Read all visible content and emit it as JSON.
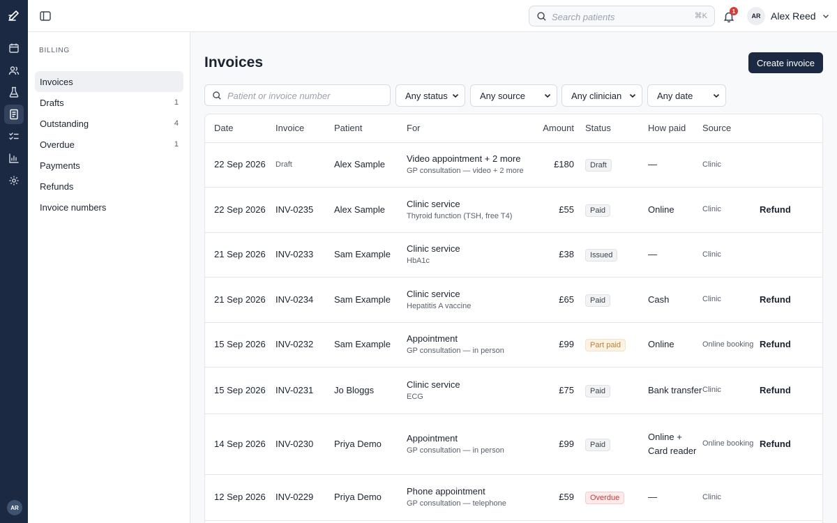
{
  "topbar": {
    "search_placeholder": "Search patients",
    "search_shortcut": "⌘K",
    "notification_count": "1",
    "user_initials": "AR",
    "user_name": "Alex Reed"
  },
  "rail": {
    "icons": [
      "compose-logo-icon",
      "calendar-icon",
      "patients-icon",
      "lab-flask-icon",
      "billing-icon",
      "tasks-checklist-icon",
      "reports-chart-icon",
      "settings-gear-icon"
    ],
    "active": "billing-icon",
    "avatar_initials": "AR"
  },
  "sidebar": {
    "section_title": "BILLING",
    "items": [
      {
        "label": "Invoices",
        "count": ""
      },
      {
        "label": "Drafts",
        "count": "1"
      },
      {
        "label": "Outstanding",
        "count": "4"
      },
      {
        "label": "Overdue",
        "count": "1"
      },
      {
        "label": "Payments",
        "count": ""
      },
      {
        "label": "Refunds",
        "count": ""
      },
      {
        "label": "Invoice numbers",
        "count": ""
      }
    ]
  },
  "main": {
    "title": "Invoices",
    "create_button": "Create invoice",
    "filter_search_placeholder": "Patient or invoice number",
    "filters": {
      "status": "Any status",
      "source": "Any source",
      "clinician": "Any clinician",
      "date": "Any date"
    }
  },
  "table": {
    "headers": {
      "date": "Date",
      "invoice": "Invoice",
      "patient": "Patient",
      "for": "For",
      "amount": "Amount",
      "status": "Status",
      "how_paid": "How paid",
      "source": "Source"
    },
    "action_label": "Refund",
    "rows": [
      {
        "date": "22 Sep 2026",
        "invoice": "Draft",
        "patient": "Alex Sample",
        "for": "Video appointment + 2 more",
        "for_detail": "GP consultation — video + 2 more",
        "amount": "£180",
        "status": "Draft",
        "status_kind": "neutral",
        "how_paid": "—",
        "source": "Clinic",
        "action": ""
      },
      {
        "date": "22 Sep 2026",
        "invoice": "INV-0235",
        "patient": "Alex Sample",
        "for": "Clinic service",
        "for_detail": "Thyroid function (TSH, free T4)",
        "amount": "£55",
        "status": "Paid",
        "status_kind": "neutral",
        "how_paid": "Online",
        "source": "Clinic",
        "action": "Refund"
      },
      {
        "date": "21 Sep 2026",
        "invoice": "INV-0233",
        "patient": "Sam Example",
        "for": "Clinic service",
        "for_detail": "HbA1c",
        "amount": "£38",
        "status": "Issued",
        "status_kind": "neutral",
        "how_paid": "—",
        "source": "Clinic",
        "action": ""
      },
      {
        "date": "21 Sep 2026",
        "invoice": "INV-0234",
        "patient": "Sam Example",
        "for": "Clinic service",
        "for_detail": "Hepatitis A vaccine",
        "amount": "£65",
        "status": "Paid",
        "status_kind": "neutral",
        "how_paid": "Cash",
        "source": "Clinic",
        "action": "Refund"
      },
      {
        "date": "15 Sep 2026",
        "invoice": "INV-0232",
        "patient": "Sam Example",
        "for": "Appointment",
        "for_detail": "GP consultation — in person",
        "amount": "£99",
        "status": "Part paid",
        "status_kind": "partial",
        "how_paid": "Online",
        "source": "Online booking",
        "action": "Refund"
      },
      {
        "date": "15 Sep 2026",
        "invoice": "INV-0231",
        "patient": "Jo Bloggs",
        "for": "Clinic service",
        "for_detail": "ECG",
        "amount": "£75",
        "status": "Paid",
        "status_kind": "neutral",
        "how_paid": "Bank transfer",
        "source": "Clinic",
        "action": "Refund"
      },
      {
        "date": "14 Sep 2026",
        "invoice": "INV-0230",
        "patient": "Priya Demo",
        "for": "Appointment",
        "for_detail": "GP consultation — in person",
        "amount": "£99",
        "status": "Paid",
        "status_kind": "neutral",
        "how_paid": "Online + Card reader",
        "source": "Online booking",
        "action": "Refund"
      },
      {
        "date": "12 Sep 2026",
        "invoice": "INV-0229",
        "patient": "Priya Demo",
        "for": "Phone appointment",
        "for_detail": "GP consultation — telephone",
        "amount": "£59",
        "status": "Overdue",
        "status_kind": "overdue",
        "how_paid": "—",
        "source": "Clinic",
        "action": ""
      }
    ]
  }
}
